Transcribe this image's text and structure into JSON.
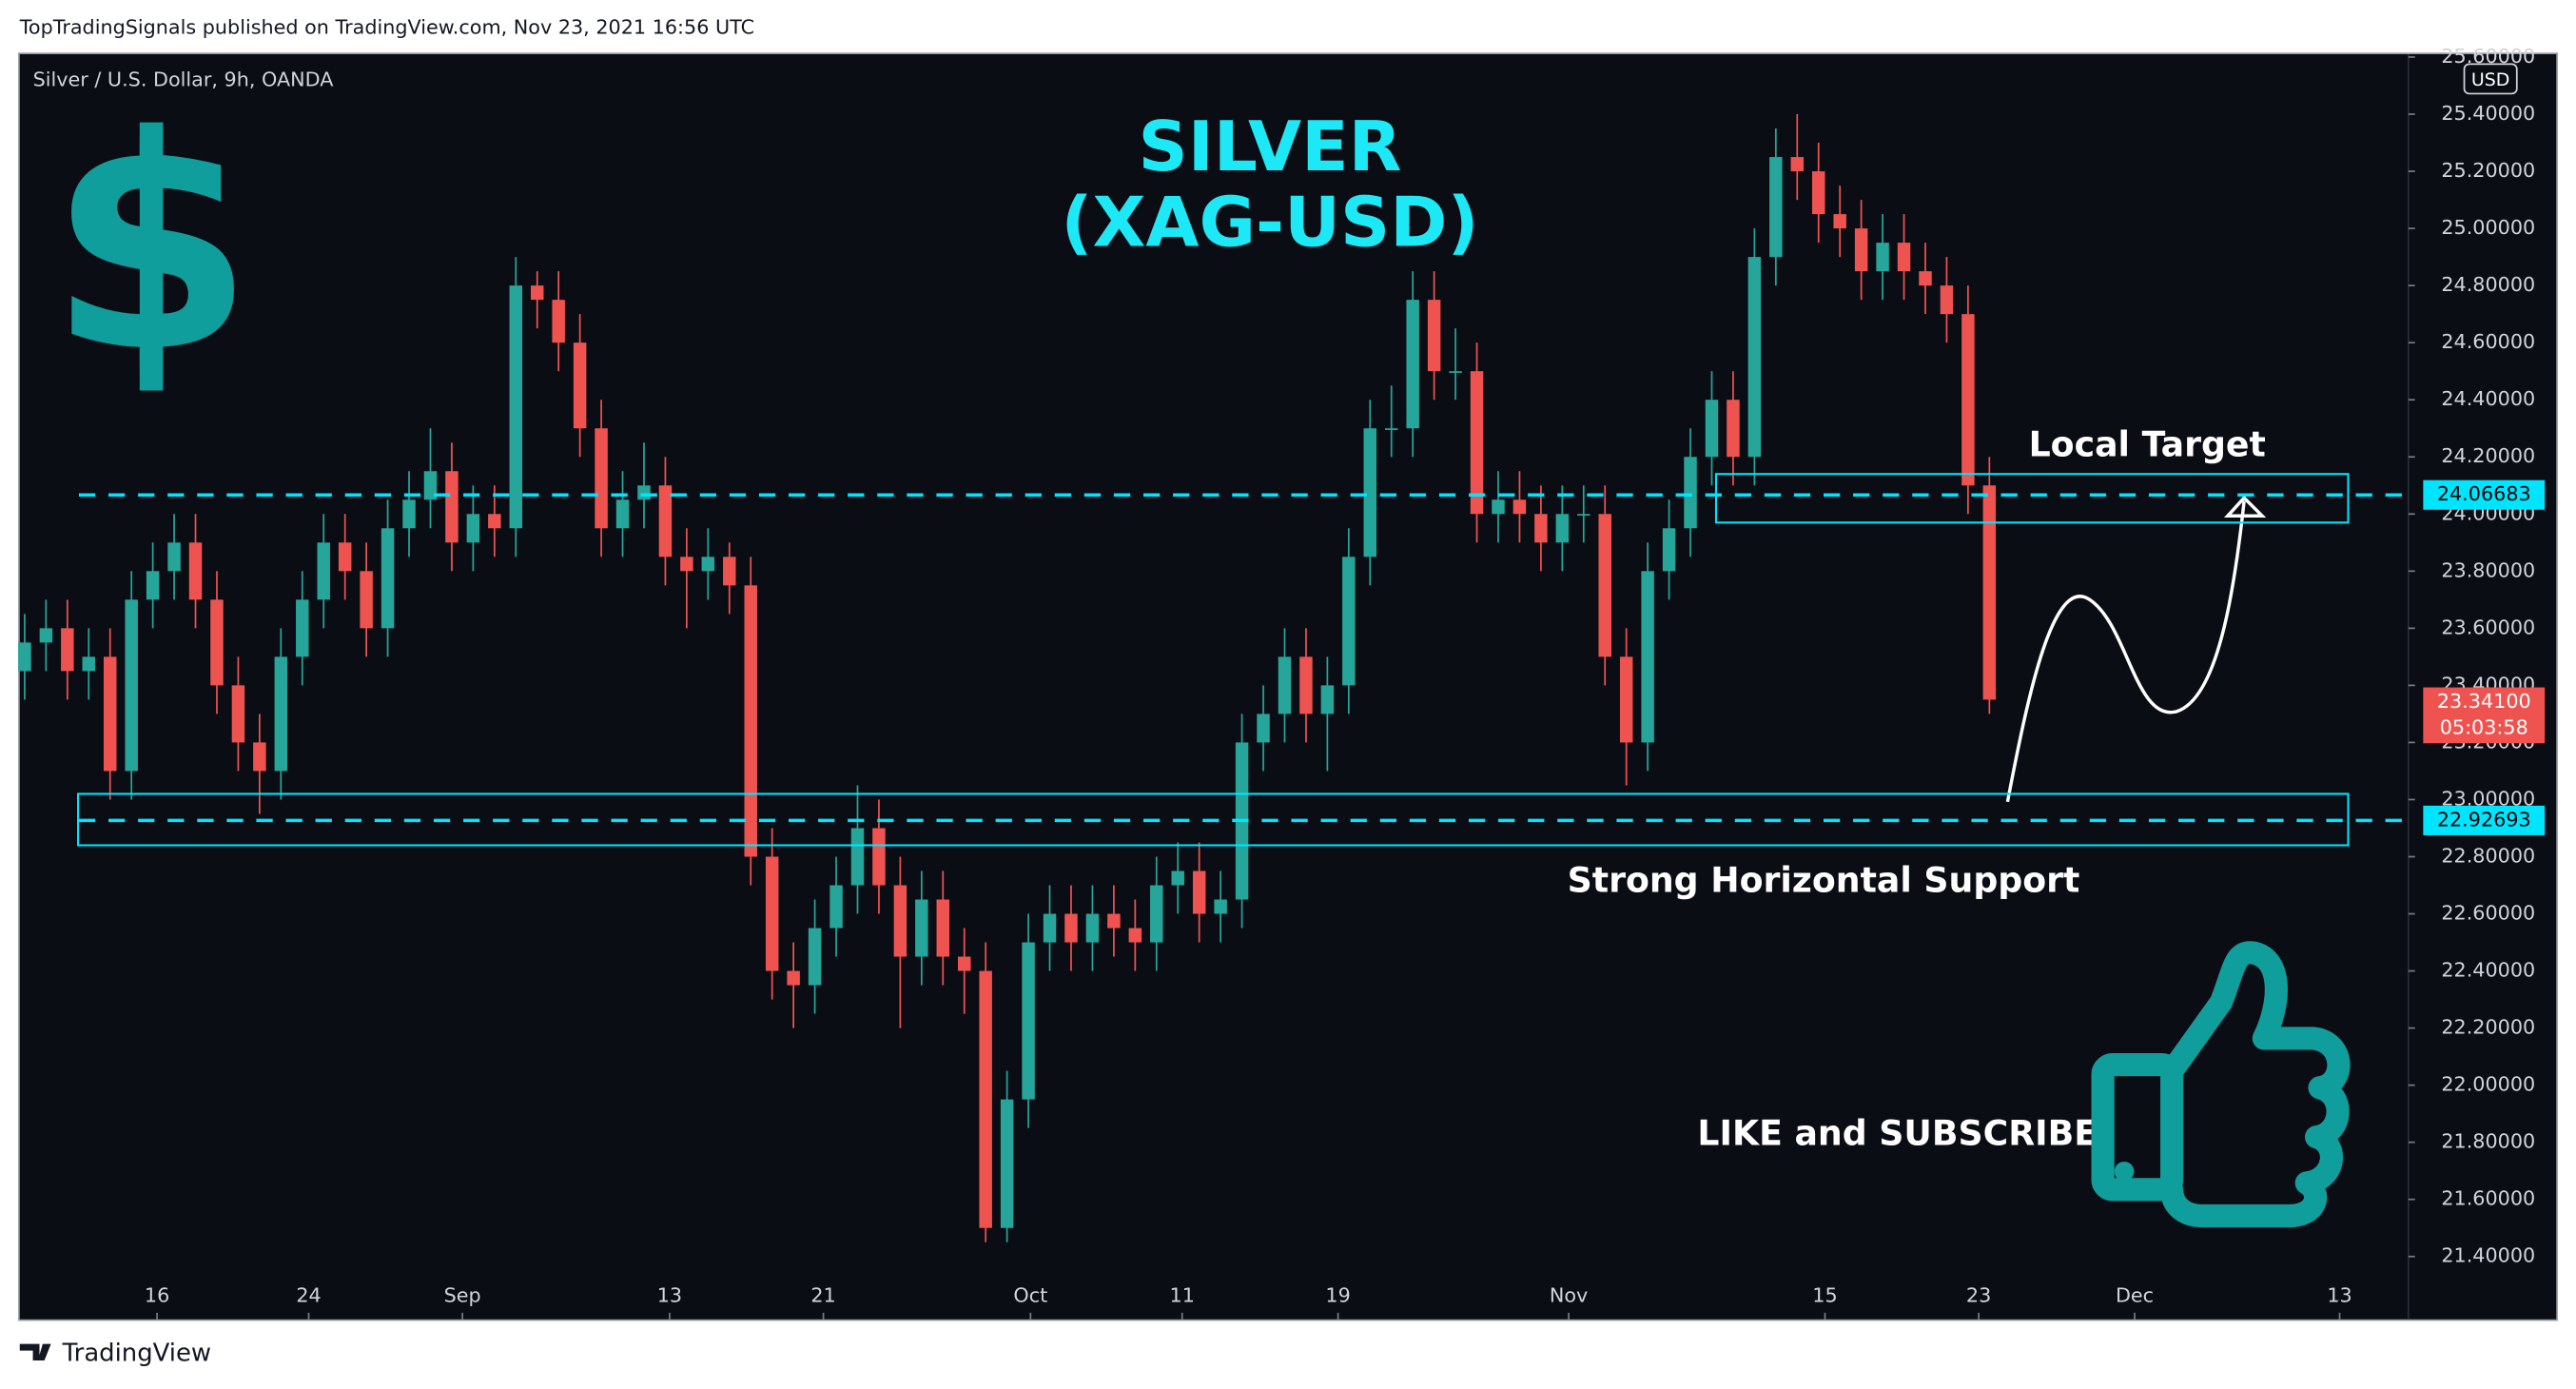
{
  "header": "TopTradingSignals published on TradingView.com, Nov 23, 2021 16:56 UTC",
  "footer_logo": "TradingView",
  "chart_data": {
    "type": "candlestick",
    "symbol": "Silver / U.S. Dollar, 9h, OANDA",
    "title": "SILVER",
    "subtitle": "(XAG-USD)",
    "currency": "USD",
    "icon_text": "$",
    "annotations": [
      "Local Target",
      "Strong Horizontal Support",
      "LIKE and SUBSCRIBE"
    ],
    "up_color": "#26a69a",
    "down_color": "#ef5350",
    "grid": false,
    "xlim": [
      -0.23,
      111.62
    ],
    "ylim": [
      21.18,
      25.61
    ],
    "xticks": [
      {
        "value": 6.2,
        "label": "16"
      },
      {
        "value": 13.3,
        "label": "24"
      },
      {
        "value": 20.5,
        "label": "Sep"
      },
      {
        "value": 30.2,
        "label": "13"
      },
      {
        "value": 37.4,
        "label": "21"
      },
      {
        "value": 47.1,
        "label": "Oct"
      },
      {
        "value": 54.2,
        "label": "11"
      },
      {
        "value": 61.5,
        "label": "19"
      },
      {
        "value": 72.3,
        "label": "Nov"
      },
      {
        "value": 84.3,
        "label": "15"
      },
      {
        "value": 91.5,
        "label": "23"
      },
      {
        "value": 98.8,
        "label": "Dec"
      },
      {
        "value": 108.4,
        "label": "13"
      }
    ],
    "yticks": [
      {
        "value": 21.4,
        "label": "21.40000"
      },
      {
        "value": 21.6,
        "label": "21.60000"
      },
      {
        "value": 21.8,
        "label": "21.80000"
      },
      {
        "value": 22.0,
        "label": "22.00000"
      },
      {
        "value": 22.2,
        "label": "22.20000"
      },
      {
        "value": 22.4,
        "label": "22.40000"
      },
      {
        "value": 22.6,
        "label": "22.60000"
      },
      {
        "value": 22.8,
        "label": "22.80000"
      },
      {
        "value": 23.0,
        "label": "23.00000"
      },
      {
        "value": 23.2,
        "label": "23.20000"
      },
      {
        "value": 23.4,
        "label": "23.40000"
      },
      {
        "value": 23.6,
        "label": "23.60000"
      },
      {
        "value": 23.8,
        "label": "23.80000"
      },
      {
        "value": 24.0,
        "label": "24.00000"
      },
      {
        "value": 24.2,
        "label": "24.20000"
      },
      {
        "value": 24.4,
        "label": "24.40000"
      },
      {
        "value": 24.6,
        "label": "24.60000"
      },
      {
        "value": 24.8,
        "label": "24.80000"
      },
      {
        "value": 25.0,
        "label": "25.00000"
      },
      {
        "value": 25.2,
        "label": "25.20000"
      },
      {
        "value": 25.4,
        "label": "25.40000"
      },
      {
        "value": 25.6,
        "label": "25.60000"
      }
    ],
    "x": [
      0,
      1,
      2,
      3,
      4,
      5,
      6,
      7,
      8,
      9,
      10,
      11,
      12,
      13,
      14,
      15,
      16,
      17,
      18,
      19,
      20,
      21,
      22,
      23,
      24,
      25,
      26,
      27,
      28,
      29,
      30,
      31,
      32,
      33,
      34,
      35,
      36,
      37,
      38,
      39,
      40,
      41,
      42,
      43,
      44,
      45,
      46,
      47,
      48,
      49,
      50,
      51,
      52,
      53,
      54,
      55,
      56,
      57,
      58,
      59,
      60,
      61,
      62,
      63,
      64,
      65,
      66,
      67,
      68,
      69,
      70,
      71,
      72,
      73,
      74,
      75,
      76,
      77,
      78,
      79,
      80,
      81,
      82,
      83,
      84,
      85,
      86,
      87,
      88,
      89,
      90,
      91,
      92
    ],
    "series": [
      {
        "open": [
          23.45,
          23.55,
          23.6,
          23.45,
          23.5,
          23.1,
          23.7,
          23.8,
          23.9,
          23.7,
          23.4,
          23.2,
          23.1,
          23.5,
          23.7,
          23.9,
          23.8,
          23.6,
          23.95,
          24.05,
          24.15,
          23.9,
          24.0,
          23.95,
          24.8,
          24.75,
          24.6,
          24.3,
          23.95,
          24.05,
          24.1,
          23.85,
          23.8,
          23.85,
          23.75,
          22.8,
          22.4,
          22.35,
          22.55,
          22.7,
          22.9,
          22.7,
          22.45,
          22.65,
          22.45,
          22.4,
          21.5,
          21.95,
          22.5,
          22.6,
          22.5,
          22.6,
          22.55,
          22.5,
          22.7,
          22.75,
          22.6,
          22.65,
          23.2,
          23.3,
          23.5,
          23.3,
          23.4,
          23.85,
          24.3,
          24.3,
          24.75,
          24.5,
          24.5,
          24.0,
          24.05,
          24.0,
          23.9,
          24.0,
          24.0,
          23.5,
          23.2,
          23.8,
          23.95,
          24.2,
          24.4,
          24.2,
          24.9,
          25.25,
          25.2,
          25.05,
          25.0,
          24.85,
          24.95,
          24.85,
          24.8,
          24.7,
          24.1
        ],
        "high": [
          23.65,
          23.7,
          23.7,
          23.6,
          23.6,
          23.8,
          23.9,
          24.0,
          24.0,
          23.8,
          23.5,
          23.3,
          23.6,
          23.8,
          24.0,
          24.0,
          23.9,
          24.05,
          24.15,
          24.3,
          24.25,
          24.1,
          24.1,
          24.9,
          24.85,
          24.85,
          24.7,
          24.4,
          24.15,
          24.25,
          24.2,
          23.95,
          23.95,
          23.9,
          23.85,
          22.9,
          22.5,
          22.65,
          22.8,
          23.05,
          23.0,
          22.8,
          22.75,
          22.75,
          22.55,
          22.5,
          22.05,
          22.6,
          22.7,
          22.7,
          22.7,
          22.7,
          22.65,
          22.8,
          22.85,
          22.85,
          22.75,
          23.3,
          23.4,
          23.6,
          23.6,
          23.5,
          23.95,
          24.4,
          24.45,
          24.85,
          24.85,
          24.65,
          24.6,
          24.15,
          24.15,
          24.1,
          24.1,
          24.1,
          24.1,
          23.6,
          23.9,
          24.05,
          24.3,
          24.5,
          24.5,
          25.0,
          25.35,
          25.4,
          25.3,
          25.15,
          25.1,
          25.05,
          25.05,
          24.95,
          24.9,
          24.8,
          24.2
        ],
        "low": [
          23.35,
          23.45,
          23.35,
          23.35,
          23.0,
          23.0,
          23.6,
          23.7,
          23.6,
          23.3,
          23.1,
          22.95,
          23.0,
          23.4,
          23.6,
          23.7,
          23.5,
          23.5,
          23.85,
          23.95,
          23.8,
          23.8,
          23.85,
          23.85,
          24.65,
          24.5,
          24.2,
          23.85,
          23.85,
          23.95,
          23.75,
          23.6,
          23.7,
          23.65,
          22.7,
          22.3,
          22.2,
          22.25,
          22.45,
          22.6,
          22.6,
          22.2,
          22.35,
          22.35,
          22.25,
          21.45,
          21.45,
          21.85,
          22.4,
          22.4,
          22.4,
          22.45,
          22.4,
          22.4,
          22.6,
          22.5,
          22.5,
          22.55,
          23.1,
          23.2,
          23.2,
          23.1,
          23.3,
          23.75,
          24.2,
          24.2,
          24.4,
          24.4,
          23.9,
          23.9,
          23.9,
          23.8,
          23.8,
          23.9,
          23.4,
          23.05,
          23.1,
          23.7,
          23.85,
          24.1,
          24.1,
          24.1,
          24.8,
          25.1,
          24.95,
          24.9,
          24.75,
          24.75,
          24.75,
          24.7,
          24.6,
          24.0,
          23.3
        ],
        "close": [
          23.55,
          23.6,
          23.45,
          23.5,
          23.1,
          23.7,
          23.8,
          23.9,
          23.7,
          23.4,
          23.2,
          23.1,
          23.5,
          23.7,
          23.9,
          23.8,
          23.6,
          23.95,
          24.05,
          24.15,
          23.9,
          24.0,
          23.95,
          24.8,
          24.75,
          24.6,
          24.3,
          23.95,
          24.05,
          24.1,
          23.85,
          23.8,
          23.85,
          23.75,
          22.8,
          22.4,
          22.35,
          22.55,
          22.7,
          22.9,
          22.7,
          22.45,
          22.65,
          22.45,
          22.4,
          21.5,
          21.95,
          22.5,
          22.6,
          22.5,
          22.6,
          22.55,
          22.5,
          22.7,
          22.75,
          22.6,
          22.65,
          23.2,
          23.3,
          23.5,
          23.3,
          23.4,
          23.85,
          24.3,
          24.3,
          24.75,
          24.5,
          24.5,
          24.0,
          24.05,
          24.0,
          23.9,
          24.0,
          24.0,
          23.5,
          23.2,
          23.8,
          23.95,
          24.2,
          24.4,
          24.2,
          24.9,
          25.25,
          25.2,
          25.05,
          25.0,
          24.85,
          24.95,
          24.85,
          24.8,
          24.7,
          24.1,
          23.35
        ]
      }
    ],
    "zones": [
      {
        "y": [
          23.97,
          24.14
        ],
        "x": [
          79.2,
          108.8
        ],
        "color": "#00e5ff"
      },
      {
        "y": [
          22.84,
          23.02
        ],
        "x": [
          2.5,
          108.8
        ],
        "color": "#00e5ff"
      }
    ],
    "levels": [
      {
        "value": 24.06683,
        "color": "#00e5ff"
      },
      {
        "value": 22.92693,
        "color": "#00e5ff"
      }
    ],
    "last_price": {
      "value": 23.341,
      "label": "23.34100",
      "color": "#ef5350"
    },
    "countdown": "05:03:58"
  }
}
